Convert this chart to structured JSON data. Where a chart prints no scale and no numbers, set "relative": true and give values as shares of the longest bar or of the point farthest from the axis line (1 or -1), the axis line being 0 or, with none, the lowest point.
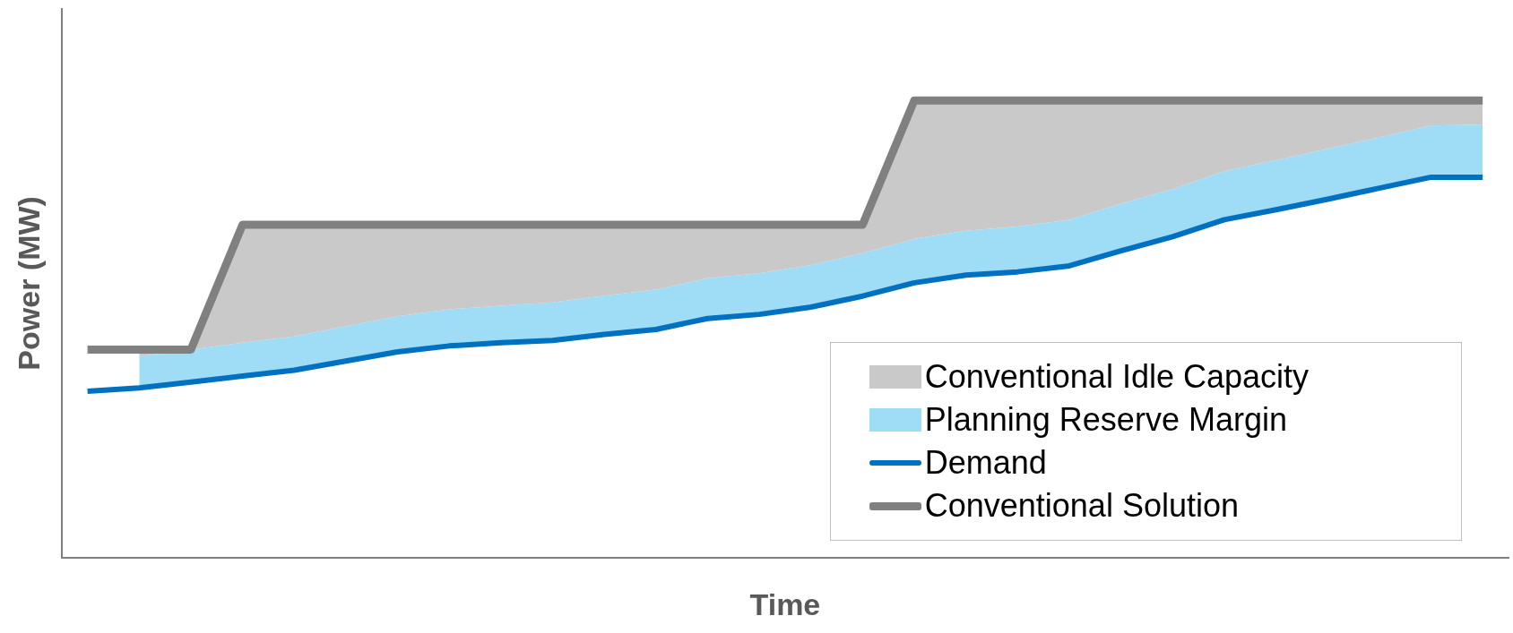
{
  "chart_data": {
    "type": "line",
    "xlabel": "Time",
    "ylabel": "Power (MW)",
    "relative": true,
    "legend": "bottom right",
    "grid": false,
    "categories": [
      null,
      null,
      null,
      null,
      null,
      null,
      null,
      null,
      null,
      null,
      null,
      null,
      null,
      null,
      null,
      null,
      null,
      null,
      null,
      null,
      null,
      null,
      null,
      null,
      null,
      null,
      null,
      null
    ],
    "series": [
      {
        "name": "Conventional Idle Capacity",
        "type": "area",
        "color": "#c9c9c9",
        "values": [
          null,
          0.455,
          0.455,
          0.728,
          0.728,
          0.728,
          0.728,
          0.728,
          0.728,
          0.728,
          0.728,
          0.728,
          0.728,
          0.728,
          0.728,
          0.728,
          1,
          1,
          1,
          1,
          1,
          1,
          1,
          1,
          1,
          1,
          1,
          1
        ]
      },
      {
        "name": "Planning Reserve Margin",
        "type": "area",
        "color": "#9fdcf5",
        "values": [
          null,
          0.44,
          0.455,
          0.47,
          0.484,
          0.506,
          0.528,
          0.543,
          0.551,
          0.558,
          0.573,
          0.586,
          0.611,
          0.622,
          0.64,
          0.666,
          0.697,
          0.715,
          0.724,
          0.739,
          0.774,
          0.806,
          0.845,
          0.869,
          0.894,
          0.919,
          0.945,
          0.947
        ]
      },
      {
        "name": "Demand",
        "color": "#0070c0",
        "values": [
          0.364,
          0.371,
          0.384,
          0.397,
          0.41,
          0.43,
          0.45,
          0.463,
          0.47,
          0.475,
          0.488,
          0.499,
          0.523,
          0.532,
          0.548,
          0.572,
          0.601,
          0.618,
          0.625,
          0.638,
          0.671,
          0.702,
          0.739,
          0.761,
          0.784,
          0.808,
          0.832,
          0.832
        ]
      },
      {
        "name": "Conventional Solution",
        "color": "#808080",
        "values": [
          0.455,
          0.455,
          0.455,
          0.728,
          0.728,
          0.728,
          0.728,
          0.728,
          0.728,
          0.728,
          0.728,
          0.728,
          0.728,
          0.728,
          0.728,
          0.728,
          1,
          1,
          1,
          1,
          1,
          1,
          1,
          1,
          1,
          1,
          1,
          1
        ]
      }
    ]
  }
}
